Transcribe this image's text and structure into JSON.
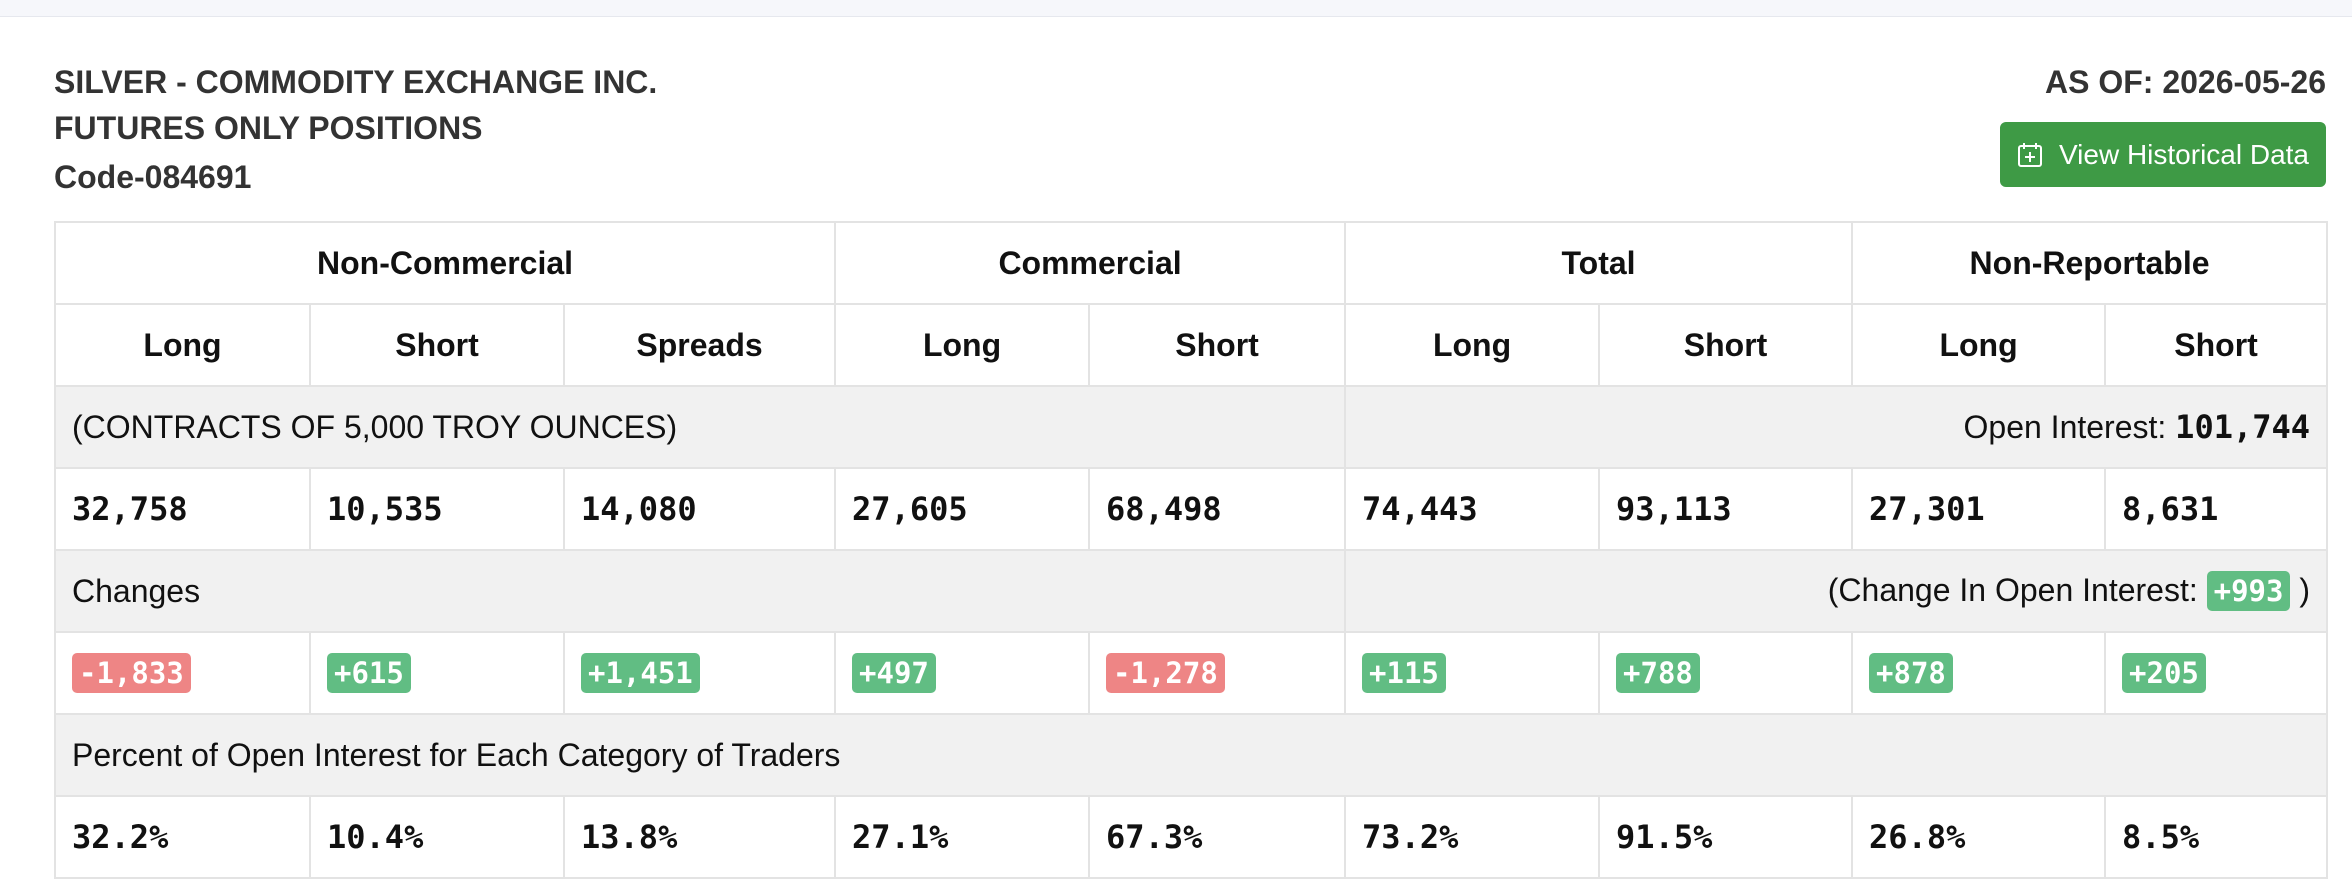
{
  "header": {
    "title_line1": "SILVER - COMMODITY EXCHANGE INC.",
    "title_line2": "FUTURES ONLY POSITIONS",
    "code": "Code-084691",
    "as_of": "AS OF: 2026-05-26",
    "history_button": "View Historical Data",
    "history_icon": "calendar-plus-icon"
  },
  "table": {
    "groups": [
      "Non-Commercial",
      "Commercial",
      "Total",
      "Non-Reportable"
    ],
    "columns": [
      "Long",
      "Short",
      "Spreads",
      "Long",
      "Short",
      "Long",
      "Short",
      "Long",
      "Short"
    ],
    "contracts_label": "(CONTRACTS OF 5,000 TROY OUNCES)",
    "open_interest_label": "Open Interest:",
    "open_interest_value": "101,744",
    "positions": [
      "32,758",
      "10,535",
      "14,080",
      "27,605",
      "68,498",
      "74,443",
      "93,113",
      "27,301",
      "8,631"
    ],
    "changes_label": "Changes",
    "change_oi_prefix": "(Change In Open Interest:",
    "change_oi_value": "+993",
    "change_oi_suffix": ")",
    "changes": [
      "-1,833",
      "+615",
      "+1,451",
      "+497",
      "-1,278",
      "+115",
      "+788",
      "+878",
      "+205"
    ],
    "percent_label": "Percent of Open Interest for Each Category of Traders",
    "percents": [
      "32.2%",
      "10.4%",
      "13.8%",
      "27.1%",
      "67.3%",
      "73.2%",
      "91.5%",
      "26.8%",
      "8.5%"
    ]
  },
  "colors": {
    "positive": "#61bd83",
    "negative": "#ee8585",
    "button": "#3e9a45"
  }
}
